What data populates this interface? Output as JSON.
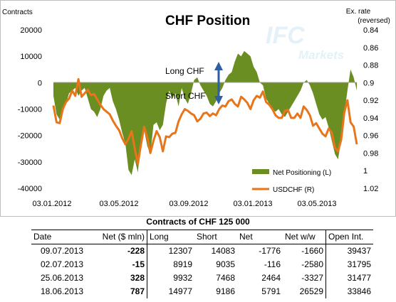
{
  "chart_data": {
    "type": "area+line",
    "title": "CHF Position",
    "left_axis_label": "Contracts",
    "right_axis_label_line1": "Ex. rate",
    "right_axis_label_line2": "(reversed)",
    "left_ticks": [
      "20000",
      "10000",
      "0",
      "-10000",
      "-20000",
      "-30000",
      "-40000"
    ],
    "right_ticks": [
      "0.84",
      "0.86",
      "0.88",
      "0.9",
      "0.92",
      "0.94",
      "0.96",
      "0.98",
      "1",
      "1.02"
    ],
    "x_ticks": [
      "03.01.2012",
      "03.05.2012",
      "03.09.2012",
      "03.01.2013",
      "03.05.2013"
    ],
    "left_ylim": [
      -40000,
      20000
    ],
    "right_ylim_reversed": [
      0.84,
      1.02
    ],
    "annotation_long": "Long CHF",
    "annotation_short": "Short CHF",
    "watermark_line1": "IFC",
    "watermark_line2": "Markets",
    "legend": [
      {
        "name": "Net Positioning (L)",
        "color": "#6b8e23"
      },
      {
        "name": "USDCHF (R)",
        "color": "#e8751a"
      }
    ],
    "series": [
      {
        "name": "Net Positioning (L)",
        "color": "#6b8e23",
        "values": [
          -5000,
          -12000,
          -14000,
          -11000,
          -8000,
          -4000,
          -3000,
          -2000,
          -5000,
          -3000,
          -2000,
          -6000,
          -10000,
          -11000,
          -13000,
          -10000,
          -5000,
          -3000,
          -2000,
          -7000,
          -10000,
          -14000,
          -19000,
          -23000,
          -33000,
          -35000,
          -29000,
          -34000,
          -22000,
          -18000,
          -24000,
          -27000,
          -16000,
          -15000,
          -18000,
          -16000,
          -8000,
          -3000,
          -6000,
          -4000,
          -9000,
          -2000,
          -6000,
          -8000,
          -4000,
          1000,
          2000,
          -1000,
          -3000,
          -5000,
          -8000,
          -9000,
          -7000,
          -4000,
          -2000,
          1000,
          3000,
          4000,
          8000,
          11000,
          10000,
          12000,
          11000,
          10000,
          6000,
          4000,
          0,
          -1000,
          -6000,
          -8000,
          -10000,
          -11000,
          -10000,
          -12000,
          -13000,
          -11000,
          -9000,
          -7000,
          -5000,
          -3000,
          0,
          1000,
          -1000,
          -4000,
          -8000,
          -12000,
          -14000,
          -13000,
          -17000,
          -22000,
          -27000,
          -29000,
          -22000,
          -12000,
          -3000,
          5000,
          2000,
          -3000
        ]
      },
      {
        "name": "USDCHF (R)",
        "values": [
          0.926,
          0.945,
          0.946,
          0.93,
          0.922,
          0.918,
          0.909,
          0.915,
          0.896,
          0.916,
          0.912,
          0.908,
          0.914,
          0.913,
          0.919,
          0.925,
          0.93,
          0.933,
          0.936,
          0.943,
          0.949,
          0.954,
          0.963,
          0.97,
          0.964,
          0.955,
          0.975,
          0.992,
          0.97,
          0.95,
          0.962,
          0.98,
          0.966,
          0.955,
          0.962,
          0.978,
          0.961,
          0.962,
          0.958,
          0.957,
          0.944,
          0.936,
          0.93,
          0.932,
          0.935,
          0.937,
          0.944,
          0.941,
          0.935,
          0.934,
          0.938,
          0.935,
          0.937,
          0.93,
          0.926,
          0.927,
          0.921,
          0.919,
          0.924,
          0.927,
          0.916,
          0.919,
          0.923,
          0.93,
          0.92,
          0.915,
          0.917,
          0.91,
          0.922,
          0.925,
          0.93,
          0.937,
          0.94,
          0.94,
          0.932,
          0.931,
          0.94,
          0.94,
          0.935,
          0.94,
          0.927,
          0.931,
          0.937,
          0.949,
          0.946,
          0.952,
          0.958,
          0.961,
          0.952,
          0.957,
          0.974,
          0.978,
          0.965,
          0.934,
          0.92,
          0.945,
          0.95,
          0.97
        ]
      }
    ]
  },
  "table": {
    "title": "Contracts of CHF 125 000",
    "headers": [
      "Date",
      "Net ($ mln)",
      "Long",
      "Short",
      "Net",
      "Net w/w",
      "Open Int."
    ],
    "rows": [
      [
        "09.07.2013",
        "-228",
        "12307",
        "14083",
        "-1776",
        "-1660",
        "39437"
      ],
      [
        "02.07.2013",
        "-15",
        "8919",
        "9035",
        "-116",
        "-2580",
        "31795"
      ],
      [
        "25.06.2013",
        "328",
        "9932",
        "7468",
        "2464",
        "-3327",
        "31477"
      ],
      [
        "18.06.2013",
        "787",
        "14977",
        "9186",
        "5791",
        "26529",
        "33846"
      ]
    ]
  }
}
